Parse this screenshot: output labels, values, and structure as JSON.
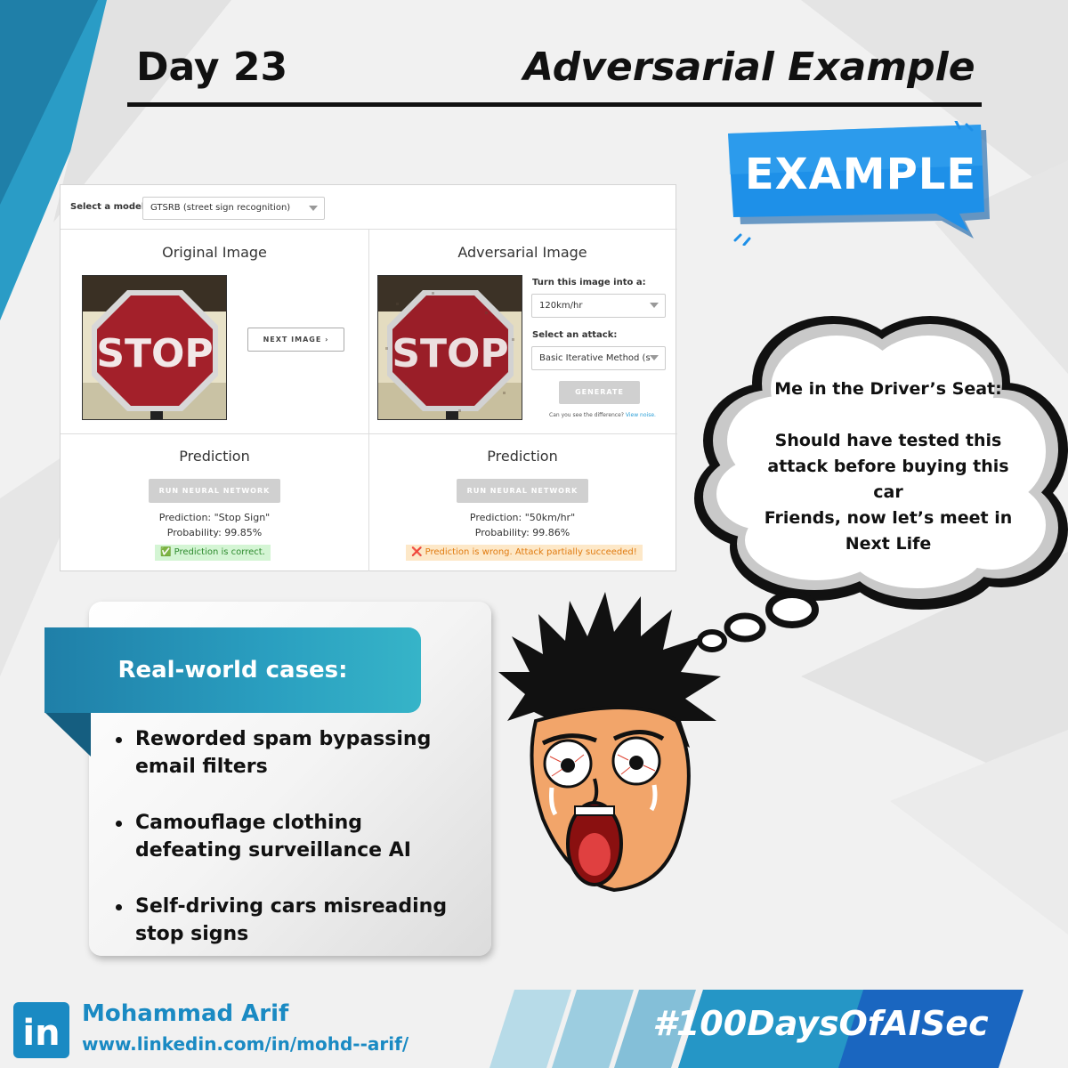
{
  "header": {
    "day": "Day 23",
    "topic": "Adversarial Example",
    "badge": "EXAMPLE"
  },
  "demo": {
    "model_label": "Select a model:",
    "model_value": "GTSRB (street sign recognition)",
    "original_heading": "Original Image",
    "adversarial_heading": "Adversarial Image",
    "sign_text": "STOP",
    "next_image_label": "NEXT IMAGE ›",
    "target_label": "Turn this image into a:",
    "target_value": "120km/hr",
    "attack_label": "Select an attack:",
    "attack_value": "Basic Iterative Method (st",
    "generate_label": "GENERATE",
    "difference_note": "Can you see the difference?",
    "view_noise_link": "View noise.",
    "left_prediction_heading": "Prediction",
    "right_prediction_heading": "Prediction",
    "run_label": "RUN NEURAL NETWORK",
    "left_prediction": "Prediction: \"Stop Sign\"",
    "left_probability": "Probability: 99.85%",
    "left_result": "✅ Prediction is correct.",
    "right_prediction": "Prediction: \"50km/hr\"",
    "right_probability": "Probability: 99.86%",
    "right_result": "❌ Prediction is wrong. Attack partially succeeded!"
  },
  "thought": {
    "line1": "Me in the Driver’s Seat:",
    "line2": "Should have tested this attack before buying this car",
    "line3": "Friends, now let’s meet in Next Life"
  },
  "cases": {
    "title": "Real-world cases:",
    "items": [
      "Reworded spam bypassing email filters",
      "Camouflage clothing defeating surveillance AI",
      "Self-driving cars misreading stop signs"
    ]
  },
  "footer": {
    "logo": "in",
    "name": "Mohammad Arif",
    "url": "www.linkedin.com/in/mohd--arif/",
    "hashtag": "#100DaysOfAISec"
  },
  "colors": {
    "accent_blue": "#1a8ac3",
    "badge_blue": "#1e90e8",
    "teal_banner": "#2a9fc0",
    "correct_green": "#2e8b2e",
    "error_orange": "#e07b10"
  },
  "icons": [
    "linkedin-icon",
    "check-icon",
    "cross-icon",
    "chevron-down-icon"
  ]
}
